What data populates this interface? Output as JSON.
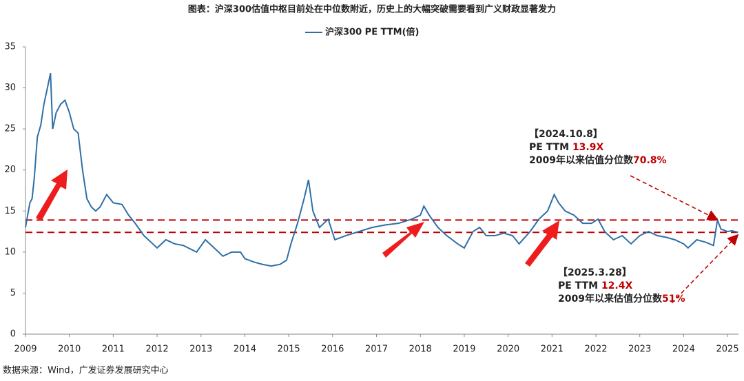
{
  "chart_data": {
    "type": "line",
    "title": "图表：沪深300估值中枢目前处在中位数附近，历史上的大幅突破需要看到广义财政显著发力",
    "source": "数据来源：Wind，广发证券发展研究中心",
    "x": [
      2009.0,
      2009.05,
      2009.1,
      2009.15,
      2009.2,
      2009.27,
      2009.35,
      2009.42,
      2009.5,
      2009.57,
      2009.62,
      2009.7,
      2009.8,
      2009.9,
      2010.0,
      2010.1,
      2010.2,
      2010.3,
      2010.4,
      2010.5,
      2010.6,
      2010.7,
      2010.85,
      2011.0,
      2011.2,
      2011.35,
      2011.5,
      2011.7,
      2011.9,
      2012.0,
      2012.2,
      2012.4,
      2012.6,
      2012.9,
      2013.1,
      2013.3,
      2013.5,
      2013.7,
      2013.9,
      2014.0,
      2014.2,
      2014.4,
      2014.6,
      2014.8,
      2014.95,
      2015.05,
      2015.2,
      2015.35,
      2015.45,
      2015.55,
      2015.7,
      2015.9,
      2016.05,
      2016.3,
      2016.6,
      2016.9,
      2017.2,
      2017.5,
      2017.8,
      2018.0,
      2018.08,
      2018.2,
      2018.4,
      2018.6,
      2018.85,
      2019.0,
      2019.2,
      2019.35,
      2019.5,
      2019.7,
      2019.9,
      2020.1,
      2020.25,
      2020.5,
      2020.7,
      2020.9,
      2021.05,
      2021.15,
      2021.3,
      2021.5,
      2021.7,
      2021.9,
      2022.05,
      2022.2,
      2022.4,
      2022.6,
      2022.8,
      2023.0,
      2023.2,
      2023.4,
      2023.6,
      2023.8,
      2024.0,
      2024.1,
      2024.3,
      2024.5,
      2024.68,
      2024.77,
      2024.85,
      2025.0,
      2025.1,
      2025.24
    ],
    "series": [
      {
        "name": "沪深300 PE TTM(倍)",
        "color": "#2e6fa7",
        "values": [
          13,
          14.5,
          16,
          16.5,
          19,
          24,
          25.5,
          28,
          30,
          31.8,
          25,
          27,
          28,
          28.5,
          27,
          25,
          24.5,
          20,
          16.5,
          15.5,
          15,
          15.5,
          17,
          16,
          15.8,
          14.5,
          13.5,
          12,
          11,
          10.5,
          11.5,
          11,
          10.8,
          10,
          11.5,
          10.5,
          9.5,
          10,
          10,
          9.2,
          8.8,
          8.5,
          8.3,
          8.5,
          9.0,
          11,
          13.5,
          16.5,
          18.8,
          15,
          13,
          14,
          11.5,
          12,
          12.5,
          13,
          13.3,
          13.5,
          14,
          14.5,
          15.6,
          14.5,
          13,
          12,
          11,
          10.5,
          12.5,
          13,
          12,
          12,
          12.3,
          12,
          11,
          12.5,
          14,
          15,
          17,
          16,
          15,
          14.5,
          13.5,
          13.5,
          14,
          12.5,
          11.5,
          12,
          11,
          12,
          12.5,
          12,
          11.8,
          11.5,
          11,
          10.5,
          11.5,
          11.2,
          10.8,
          13.9,
          12.8,
          12.5,
          12.6,
          12.4
        ]
      }
    ],
    "xlim": [
      2009,
      2025.25
    ],
    "xticks": [
      2009,
      2010,
      2011,
      2012,
      2013,
      2014,
      2015,
      2016,
      2017,
      2018,
      2019,
      2020,
      2021,
      2022,
      2023,
      2024,
      2025
    ],
    "ylim": [
      0,
      35
    ],
    "yticks": [
      0,
      5,
      10,
      15,
      20,
      25,
      30,
      35
    ],
    "reference_lines": [
      13.9,
      12.4
    ],
    "reference_color": "#c00000",
    "annotations": [
      [
        [
          {
            "text": "【2024.10.8】"
          }
        ],
        [
          {
            "text": "PE TTM "
          },
          {
            "text": "13.9X",
            "color": "#c00000"
          }
        ],
        [
          {
            "text": "2009年以来估值分位数"
          },
          {
            "text": "70.8%",
            "color": "#c00000"
          }
        ]
      ],
      [
        [
          {
            "text": "【2025.3.28】"
          }
        ],
        [
          {
            "text": "PE TTM "
          },
          {
            "text": "12.4X",
            "color": "#c00000"
          }
        ],
        [
          {
            "text": "2009年以来估值分位数"
          },
          {
            "text": "51%",
            "color": "#c00000"
          }
        ]
      ]
    ]
  }
}
